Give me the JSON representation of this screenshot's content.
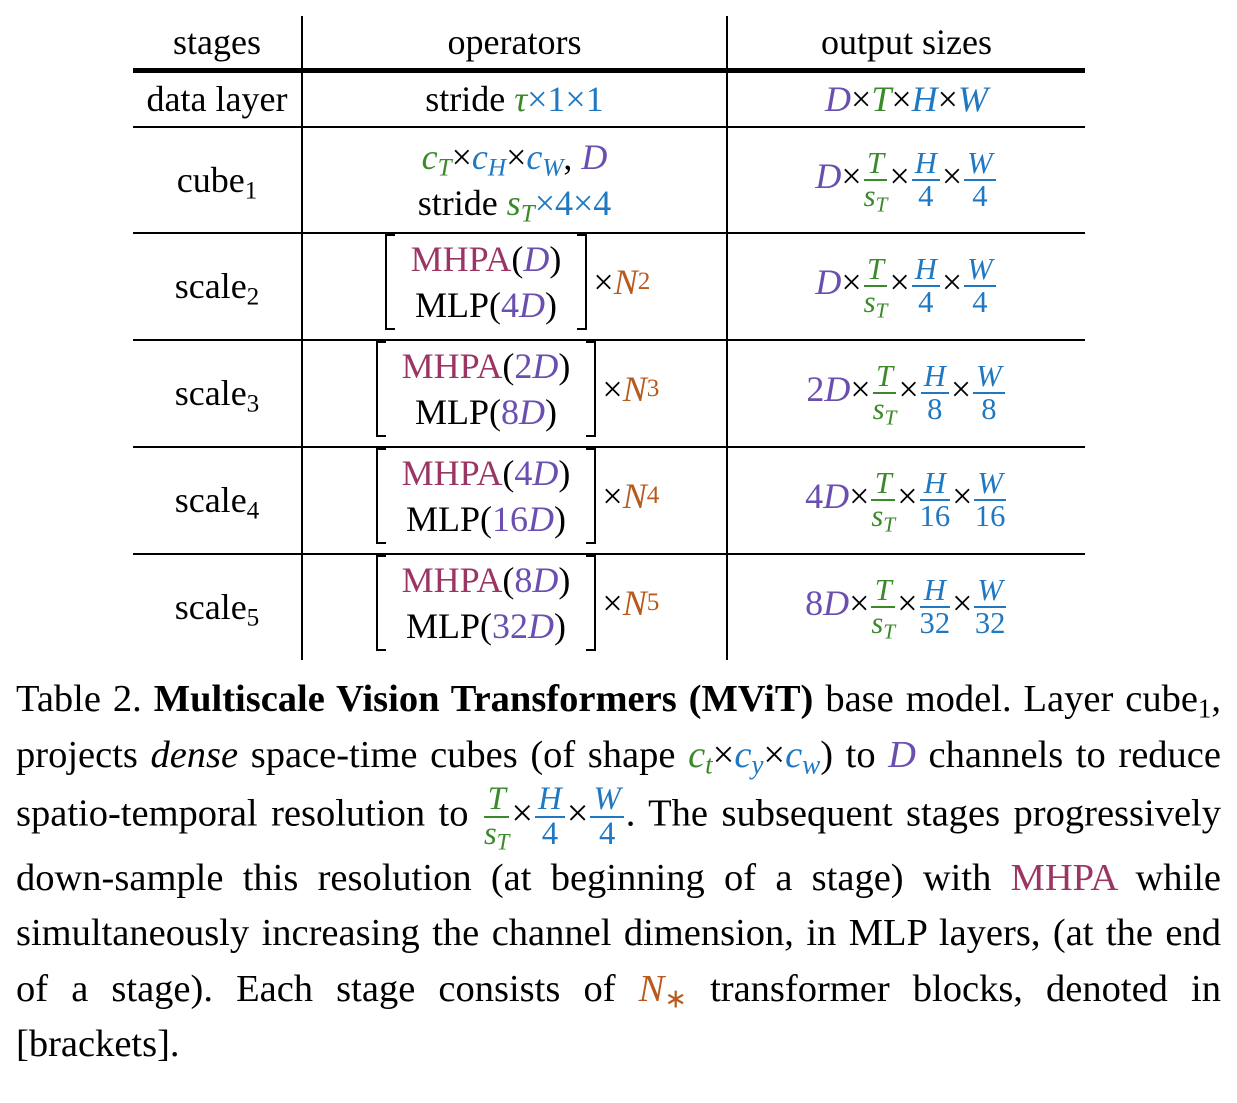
{
  "table": {
    "headers": [
      "stages",
      "operators",
      "output sizes"
    ],
    "data_layer": {
      "stage": "data layer",
      "op_prefix": "stride ",
      "op_tau": "τ",
      "op_rest": "×1×1",
      "out": [
        "D",
        "×",
        "T",
        "×",
        "H",
        "×",
        "W"
      ]
    },
    "cube": {
      "stage": "cube",
      "sub": "1",
      "ct": "c",
      "ct_sub": "T",
      "x": "×",
      "ch": "c",
      "ch_sub": "H",
      "cw": "c",
      "cw_sub": "W",
      "comma": ", ",
      "D": "D",
      "stride": "stride ",
      "sT": "s",
      "sT_sub": "T",
      "rest": "×4×4",
      "out": {
        "coef": "D",
        "t_num": "T",
        "t_den": "s",
        "t_den_sub": "T",
        "h_num": "H",
        "h_den": "4",
        "w_num": "W",
        "w_den": "4"
      }
    },
    "scales": [
      {
        "stage": "scale",
        "sub": "2",
        "mhpa": "MHPA",
        "mhpa_k": "",
        "mlp": "MLP",
        "mlp_k": "4",
        "n": "N",
        "n_sub": "2",
        "out": {
          "coef": "D",
          "h_den": "4",
          "w_den": "4"
        }
      },
      {
        "stage": "scale",
        "sub": "3",
        "mhpa": "MHPA",
        "mhpa_k": "2",
        "mlp": "MLP",
        "mlp_k": "8",
        "n": "N",
        "n_sub": "3",
        "out": {
          "coef": "2D",
          "h_den": "8",
          "w_den": "8"
        }
      },
      {
        "stage": "scale",
        "sub": "4",
        "mhpa": "MHPA",
        "mhpa_k": "4",
        "mlp": "MLP",
        "mlp_k": "16",
        "n": "N",
        "n_sub": "4",
        "out": {
          "coef": "4D",
          "h_den": "16",
          "w_den": "16"
        }
      },
      {
        "stage": "scale",
        "sub": "5",
        "mhpa": "MHPA",
        "mhpa_k": "8",
        "mlp": "MLP",
        "mlp_k": "32",
        "n": "N",
        "n_sub": "5",
        "out": {
          "coef": "8D",
          "h_den": "32",
          "w_den": "32"
        }
      }
    ]
  },
  "caption": {
    "label": "Table 2. ",
    "title": "Multiscale Vision Transformers (MViT)",
    "t1": " base model. Layer cube",
    "t1_sub": "1",
    "t2": ", projects ",
    "dense": "dense",
    "t3": " space-time cubes (of shape ",
    "ct": "c",
    "ct_sub": "t",
    "cy": "c",
    "cy_sub": "y",
    "cw": "c",
    "cw_sub": "w",
    "x": "×",
    "t4": ") to ",
    "D": "D",
    "t5": " channels to reduce spatio-temporal resolution to ",
    "fT": "T",
    "fsT": "s",
    "fsT_sub": "T",
    "fH": "H",
    "f4": "4",
    "fW": "W",
    "t6": ". The subsequent stages progressively down-sample this resolution (at beginning of a stage) with ",
    "mhpa": "MHPA",
    "t7": " while simultaneously increas­ing the channel dimension, in MLP layers, (at the end of a stage). Each stage consists of ",
    "N": "N",
    "N_sub": "∗",
    "t8": " transformer blocks, denoted in [brackets]."
  }
}
